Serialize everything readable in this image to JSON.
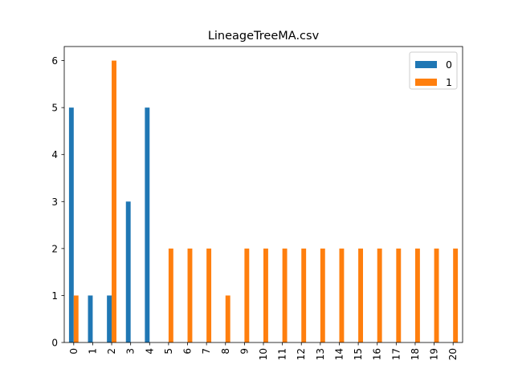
{
  "chart_data": {
    "type": "bar",
    "title": "LineageTreeMA.csv",
    "xlabel": "",
    "ylabel": "",
    "categories": [
      "0",
      "1",
      "2",
      "3",
      "4",
      "5",
      "6",
      "7",
      "8",
      "9",
      "10",
      "11",
      "12",
      "13",
      "14",
      "15",
      "16",
      "17",
      "18",
      "19",
      "20"
    ],
    "series": [
      {
        "name": "0",
        "color": "#1f77b4",
        "values": [
          5,
          1,
          1,
          3,
          5,
          0,
          0,
          0,
          0,
          0,
          0,
          0,
          0,
          0,
          0,
          0,
          0,
          0,
          0,
          0,
          0
        ]
      },
      {
        "name": "1",
        "color": "#ff7f0e",
        "values": [
          1,
          0,
          6,
          0,
          0,
          2,
          2,
          2,
          1,
          2,
          2,
          2,
          2,
          2,
          2,
          2,
          2,
          2,
          2,
          2,
          2
        ]
      }
    ],
    "ylim": [
      0,
      6.3
    ],
    "yticks": [
      0,
      1,
      2,
      3,
      4,
      5,
      6
    ],
    "grid": false,
    "legend": "top-right",
    "xtick_rotation": "vertical"
  }
}
